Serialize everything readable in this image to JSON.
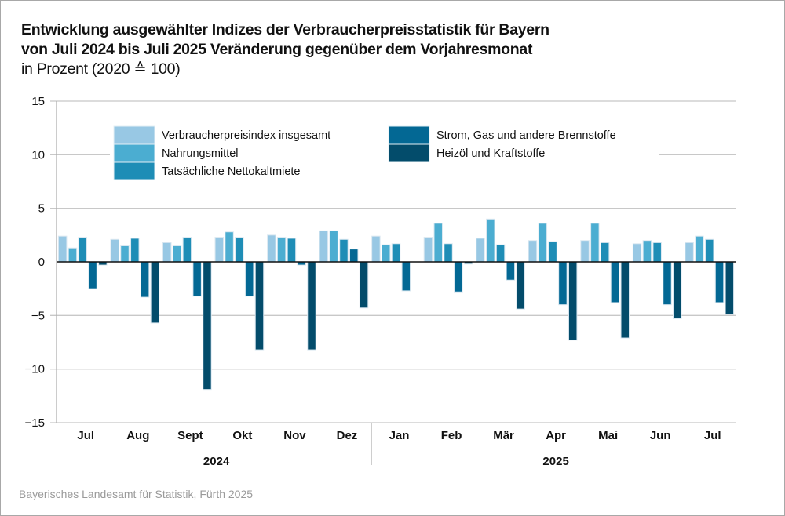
{
  "title": {
    "line1": "Entwicklung ausgewählter Indizes der Verbraucherpreisstatistik für Bayern",
    "line2": "von Juli 2024 bis Juli 2025 Veränderung gegenüber dem Vorjahresmonat",
    "line3": "in Prozent (2020 ≙ 100)"
  },
  "footer": "Bayerisches Landesamt für Statistik, Fürth 2025",
  "chart_data": {
    "type": "bar",
    "title": "Entwicklung ausgewählter Indizes der Verbraucherpreisstatistik für Bayern von Juli 2024 bis Juli 2025 Veränderung gegenüber dem Vorjahresmonat",
    "subtitle": "in Prozent (2020 ≙ 100)",
    "xlabel": "",
    "ylabel": "",
    "ylim": [
      -15,
      15
    ],
    "yticks": [
      15,
      10,
      5,
      0,
      -5,
      -10,
      -15
    ],
    "ytick_labels": [
      "15",
      "10",
      "5",
      "0",
      "−5",
      "−10",
      "−15"
    ],
    "grid": true,
    "legend_position": "top-center",
    "categories": [
      "Jul",
      "Aug",
      "Sept",
      "Okt",
      "Nov",
      "Dez",
      "Jan",
      "Feb",
      "Mär",
      "Apr",
      "Mai",
      "Jun",
      "Jul"
    ],
    "year_groups": [
      {
        "label": "2024",
        "from": 0,
        "to": 5
      },
      {
        "label": "2025",
        "from": 6,
        "to": 12
      }
    ],
    "series": [
      {
        "name": "Verbraucherpreisindex insgesamt",
        "color": "#98c8e4",
        "values": [
          2.4,
          2.1,
          1.8,
          2.3,
          2.5,
          2.9,
          2.4,
          2.3,
          2.2,
          2.0,
          2.0,
          1.7,
          1.8
        ]
      },
      {
        "name": "Nahrungsmittel",
        "color": "#4badd1",
        "values": [
          1.3,
          1.5,
          1.5,
          2.8,
          2.3,
          2.9,
          1.6,
          3.6,
          4.0,
          3.6,
          3.6,
          2.0,
          2.4
        ]
      },
      {
        "name": "Tatsächliche Nettokaltmiete",
        "color": "#1e8db6",
        "values": [
          2.3,
          2.2,
          2.3,
          2.3,
          2.2,
          2.1,
          1.7,
          1.7,
          1.6,
          1.9,
          1.8,
          1.8,
          2.1
        ]
      },
      {
        "name": "Strom, Gas und andere Brennstoffe",
        "color": "#036894",
        "values": [
          -2.5,
          -3.3,
          -3.2,
          -3.2,
          -0.3,
          1.2,
          -2.7,
          -2.8,
          -1.7,
          -4.0,
          -3.8,
          -4.0,
          -3.8
        ]
      },
      {
        "name": "Heizöl und Kraftstoffe",
        "color": "#034c6b",
        "values": [
          -0.3,
          -5.7,
          -11.9,
          -8.2,
          -8.2,
          -4.3,
          0,
          -0.2,
          -4.4,
          -7.3,
          -7.1,
          -5.3,
          -4.9
        ]
      }
    ]
  }
}
